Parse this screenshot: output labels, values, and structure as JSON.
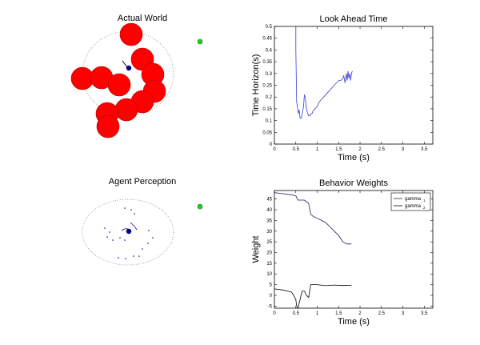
{
  "panels": {
    "actual_world": {
      "title": "Actual World"
    },
    "agent_perception": {
      "title": "Agent Perception"
    }
  },
  "colors": {
    "obstacle": "#ff0000",
    "obstacle_edge": "#b00000",
    "agent": "#00008b",
    "goal": "#22cc22",
    "line": "#3b3bd6",
    "sensing_range": "#999999"
  },
  "chart_data": [
    {
      "type": "line",
      "title": "Look Ahead Time",
      "xlabel": "Time (s)",
      "ylabel": "Time Horizon(s)",
      "xlim": [
        0,
        3.7
      ],
      "ylim": [
        0,
        0.5
      ],
      "xticks": [
        0,
        0.5,
        1,
        1.5,
        2,
        2.5,
        3,
        3.5
      ],
      "xtick_labels": [
        "0",
        "0.5",
        "1",
        "1.5",
        "2",
        "2.5",
        "3",
        "3.5"
      ],
      "yticks": [
        0,
        0.05,
        0.1,
        0.15,
        0.2,
        0.25,
        0.3,
        0.35,
        0.4,
        0.45,
        0.5
      ],
      "ytick_labels": [
        "0",
        "0.05",
        "0.1",
        "0.15",
        "0.2",
        "0.25",
        "0.3",
        "0.35",
        "0.4",
        "0.45",
        "0.5"
      ],
      "grid": false,
      "series": [
        {
          "x": [
            0.5,
            0.5,
            0.52,
            0.56,
            0.58,
            0.6,
            0.63,
            0.65,
            0.68,
            0.7,
            0.72,
            0.75,
            0.78,
            0.8,
            0.83,
            0.86,
            0.88,
            0.9,
            0.95,
            1.0,
            1.05,
            1.1,
            1.15,
            1.2,
            1.25,
            1.3,
            1.35,
            1.4,
            1.45,
            1.5,
            1.55,
            1.6,
            1.62,
            1.65,
            1.68,
            1.7,
            1.72,
            1.74,
            1.76,
            1.78,
            1.8,
            1.82
          ],
          "y": [
            0.5,
            0.4,
            0.18,
            0.13,
            0.145,
            0.11,
            0.11,
            0.13,
            0.16,
            0.21,
            0.2,
            0.15,
            0.13,
            0.12,
            0.12,
            0.13,
            0.13,
            0.14,
            0.15,
            0.16,
            0.18,
            0.19,
            0.2,
            0.21,
            0.22,
            0.23,
            0.24,
            0.25,
            0.26,
            0.27,
            0.27,
            0.28,
            0.29,
            0.26,
            0.3,
            0.27,
            0.31,
            0.28,
            0.3,
            0.27,
            0.3,
            0.31
          ]
        }
      ]
    },
    {
      "type": "line",
      "title": "Behavior Weights",
      "xlabel": "Time (s)",
      "ylabel": "Weight",
      "xlim": [
        0,
        3.7
      ],
      "ylim": [
        -6,
        49
      ],
      "xticks": [
        0,
        0.5,
        1,
        1.5,
        2,
        2.5,
        3,
        3.5
      ],
      "xtick_labels": [
        "0",
        "0.5",
        "1",
        "1.5",
        "2",
        "2.5",
        "3",
        "3.5"
      ],
      "yticks": [
        -5,
        0,
        5,
        10,
        15,
        20,
        25,
        30,
        35,
        40,
        45
      ],
      "ytick_labels": [
        "-5",
        "0",
        "5",
        "10",
        "15",
        "20",
        "25",
        "30",
        "35",
        "40",
        "45"
      ],
      "grid": false,
      "legend": {
        "position": "top-right",
        "entries": [
          "gamma",
          "gamma"
        ],
        "subscripts": [
          "1",
          "2"
        ]
      },
      "series": [
        {
          "name": "gamma1",
          "x": [
            0,
            0.2,
            0.4,
            0.5,
            0.55,
            0.6,
            0.7,
            0.8,
            0.85,
            0.9,
            1.0,
            1.1,
            1.2,
            1.3,
            1.4,
            1.5,
            1.6,
            1.7,
            1.8
          ],
          "y": [
            48,
            47.5,
            47,
            46.5,
            44.5,
            44.5,
            44.5,
            43,
            38,
            37,
            36,
            35,
            34,
            32,
            30,
            28,
            25,
            24,
            24
          ]
        },
        {
          "name": "gamma2",
          "x": [
            0,
            0.2,
            0.3,
            0.4,
            0.45,
            0.5,
            0.52,
            0.55,
            0.6,
            0.62,
            0.65,
            0.7,
            0.75,
            0.8,
            0.85,
            0.9,
            1.0,
            1.2,
            1.4,
            1.6,
            1.8
          ],
          "y": [
            3,
            2.5,
            2,
            1.5,
            0,
            -2,
            -5,
            -6,
            -2,
            0,
            2,
            2,
            0,
            -1,
            5,
            5,
            5,
            4.5,
            4.8,
            4.6,
            4.7
          ]
        }
      ]
    }
  ]
}
